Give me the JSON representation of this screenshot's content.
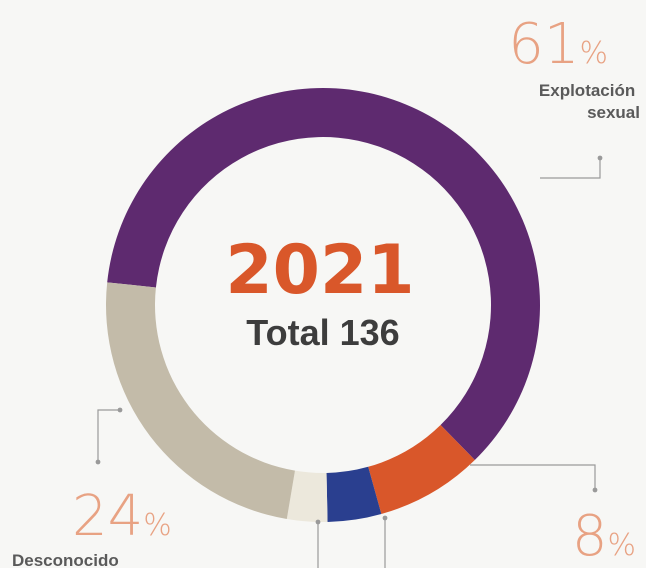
{
  "chart_data": {
    "type": "pie",
    "center": {
      "year": "2021",
      "total_label": "Total 136"
    },
    "slices": [
      {
        "label": "Explotación sexual",
        "value": 61,
        "percent_text": "61",
        "color": "#5e2a6f"
      },
      {
        "label": "",
        "value": 8,
        "percent_text": "8",
        "color": "#d9572a"
      },
      {
        "label": "",
        "value": 4,
        "percent_text": "",
        "color": "#2a3f8f"
      },
      {
        "label": "",
        "value": 3,
        "percent_text": "",
        "color": "#ece8dc"
      },
      {
        "label": "Desconocido",
        "value": 24,
        "percent_text": "24",
        "color": "#c3bba9"
      }
    ],
    "percent_sign": "%",
    "colors": {
      "year": "#d9572a",
      "total": "#3d3d3d",
      "percent": "#e8a283",
      "category": "#5a5a5a",
      "leader": "#9a9a9a"
    }
  }
}
